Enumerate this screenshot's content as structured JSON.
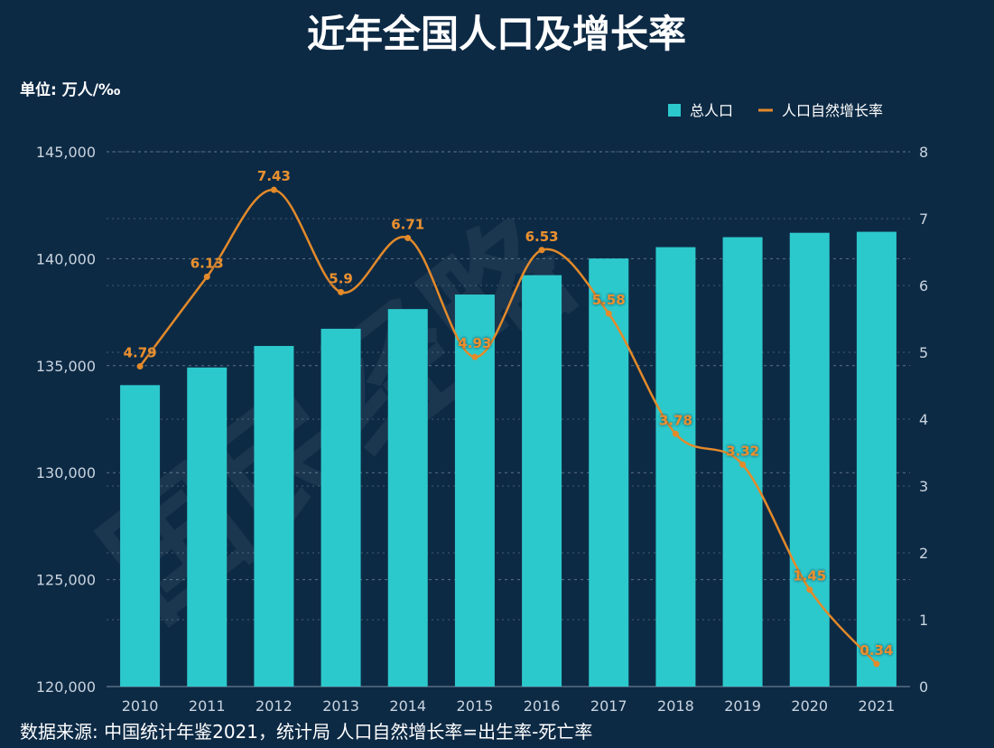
{
  "chart_data": {
    "type": "bar+line",
    "title": "近年全国人口及增长率",
    "unit_label": "单位: 万人/‰",
    "categories": [
      "2010",
      "2011",
      "2012",
      "2013",
      "2014",
      "2015",
      "2016",
      "2017",
      "2018",
      "2019",
      "2020",
      "2021"
    ],
    "series": [
      {
        "name": "总人口",
        "type": "bar",
        "axis": "left",
        "values": [
          134091,
          134916,
          135922,
          136726,
          137646,
          138326,
          139232,
          140011,
          140541,
          141008,
          141212,
          141260
        ]
      },
      {
        "name": "人口自然增长率",
        "type": "line",
        "axis": "right",
        "values": [
          4.79,
          6.13,
          7.43,
          5.9,
          6.71,
          4.93,
          6.53,
          5.58,
          3.78,
          3.32,
          1.45,
          0.34
        ],
        "labels": [
          "4.79",
          "6.13",
          "7.43",
          "5.9",
          "6.71",
          "4.93",
          "6.53",
          "5.58",
          "3.78",
          "3.32",
          "1.45",
          "0.34"
        ]
      }
    ],
    "left_axis": {
      "min": 120000,
      "max": 145000,
      "ticks": [
        "120,000",
        "125,000",
        "130,000",
        "135,000",
        "140,000",
        "145,000"
      ]
    },
    "right_axis": {
      "min": 0,
      "max": 8,
      "ticks": [
        "0",
        "1",
        "2",
        "3",
        "4",
        "5",
        "6",
        "7",
        "8"
      ]
    },
    "legend_position": "top-right",
    "source_note": "数据来源: 中国统计年鉴2021，统计局  人口自然增长率=出生率-死亡率",
    "watermark": "国民经略",
    "colors": {
      "background": "#0d2a45",
      "bar": "#2cc9cc",
      "line": "#e38a2a",
      "label": "#e8902d",
      "text": "#ffffff",
      "axis_text": "#c9d4df",
      "grid": "#7c8ea3"
    }
  }
}
